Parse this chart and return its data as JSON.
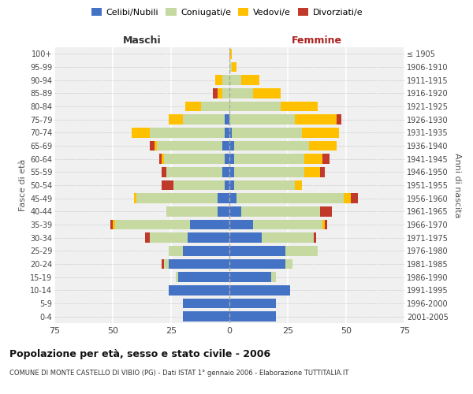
{
  "age_groups": [
    "0-4",
    "5-9",
    "10-14",
    "15-19",
    "20-24",
    "25-29",
    "30-34",
    "35-39",
    "40-44",
    "45-49",
    "50-54",
    "55-59",
    "60-64",
    "65-69",
    "70-74",
    "75-79",
    "80-84",
    "85-89",
    "90-94",
    "95-99",
    "100+"
  ],
  "birth_years": [
    "2001-2005",
    "1996-2000",
    "1991-1995",
    "1986-1990",
    "1981-1985",
    "1976-1980",
    "1971-1975",
    "1966-1970",
    "1961-1965",
    "1956-1960",
    "1951-1955",
    "1946-1950",
    "1941-1945",
    "1936-1940",
    "1931-1935",
    "1926-1930",
    "1921-1925",
    "1916-1920",
    "1911-1915",
    "1906-1910",
    "≤ 1905"
  ],
  "male_celibi": [
    20,
    20,
    26,
    22,
    26,
    20,
    18,
    17,
    5,
    5,
    2,
    3,
    2,
    3,
    2,
    2,
    0,
    0,
    0,
    0,
    0
  ],
  "male_coniugati": [
    0,
    0,
    0,
    1,
    2,
    6,
    16,
    32,
    22,
    35,
    22,
    24,
    26,
    28,
    32,
    18,
    12,
    3,
    3,
    0,
    0
  ],
  "male_vedovi": [
    0,
    0,
    0,
    0,
    0,
    0,
    0,
    1,
    0,
    1,
    0,
    0,
    1,
    1,
    8,
    6,
    7,
    2,
    3,
    0,
    0
  ],
  "male_divorziati": [
    0,
    0,
    0,
    0,
    1,
    0,
    2,
    1,
    0,
    0,
    5,
    2,
    1,
    2,
    0,
    0,
    0,
    2,
    0,
    0,
    0
  ],
  "female_celibi": [
    20,
    20,
    26,
    18,
    24,
    24,
    14,
    10,
    5,
    3,
    2,
    2,
    2,
    2,
    1,
    0,
    0,
    0,
    0,
    0,
    0
  ],
  "female_coniugati": [
    0,
    0,
    0,
    2,
    3,
    14,
    22,
    30,
    34,
    46,
    26,
    30,
    30,
    32,
    30,
    28,
    22,
    10,
    5,
    1,
    0
  ],
  "female_vedovi": [
    0,
    0,
    0,
    0,
    0,
    0,
    0,
    1,
    0,
    3,
    3,
    7,
    8,
    12,
    16,
    18,
    16,
    12,
    8,
    2,
    1
  ],
  "female_divorziati": [
    0,
    0,
    0,
    0,
    0,
    0,
    1,
    1,
    5,
    3,
    0,
    2,
    3,
    0,
    0,
    2,
    0,
    0,
    0,
    0,
    0
  ],
  "color_celibi": "#4472c4",
  "color_coniugati": "#c5d9a0",
  "color_vedovi": "#ffc000",
  "color_divorziati": "#c0392b",
  "title": "Popolazione per età, sesso e stato civile - 2006",
  "subtitle": "COMUNE DI MONTE CASTELLO DI VIBIO (PG) - Dati ISTAT 1° gennaio 2006 - Elaborazione TUTTITALIA.IT",
  "xlabel_left": "Maschi",
  "xlabel_right": "Femmine",
  "ylabel_left": "Fasce di età",
  "ylabel_right": "Anni di nascita",
  "xlim": 75,
  "bg_color": "#ffffff",
  "plot_bg_color": "#f0f0f0"
}
